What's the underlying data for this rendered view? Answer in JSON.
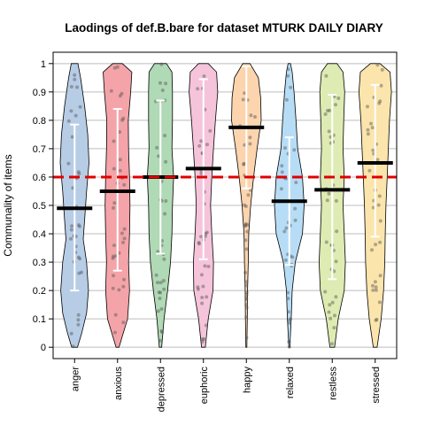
{
  "chart_data": {
    "type": "violin",
    "title": "Laodings of def.B.bare for dataset MTURK DAILY DIARY",
    "xlabel": "",
    "ylabel": "Communality of items",
    "ylim": [
      -0.04,
      1.04
    ],
    "yticks": [
      0,
      0.1,
      0.2,
      0.3,
      0.4,
      0.5,
      0.6,
      0.7,
      0.8,
      0.9,
      1
    ],
    "ytick_labels": [
      "0",
      "0.1",
      "0.2",
      "0.3",
      "0.4",
      "0.5",
      "0.6",
      "0.7",
      "0.8",
      "0.9",
      "1"
    ],
    "grid": true,
    "reference_line": 0.6,
    "reference_line_color": "#e00000",
    "categories": [
      "anger",
      "anxious",
      "depressed",
      "euphoric",
      "happy",
      "relaxed",
      "restless",
      "stressed"
    ],
    "colors": [
      "#b7cde6",
      "#f4a4a9",
      "#b0d9b5",
      "#f6c4da",
      "#fcd4ae",
      "#b7ddf6",
      "#deebb2",
      "#fbe5ac"
    ],
    "means": [
      0.49,
      0.55,
      0.6,
      0.63,
      0.775,
      0.515,
      0.555,
      0.65
    ],
    "sd_low": [
      0.2,
      0.27,
      0.33,
      0.31,
      0.56,
      0.29,
      0.24,
      0.39
    ],
    "sd_high": [
      0.785,
      0.84,
      0.87,
      0.945,
      0.99,
      0.74,
      0.89,
      0.925
    ]
  }
}
